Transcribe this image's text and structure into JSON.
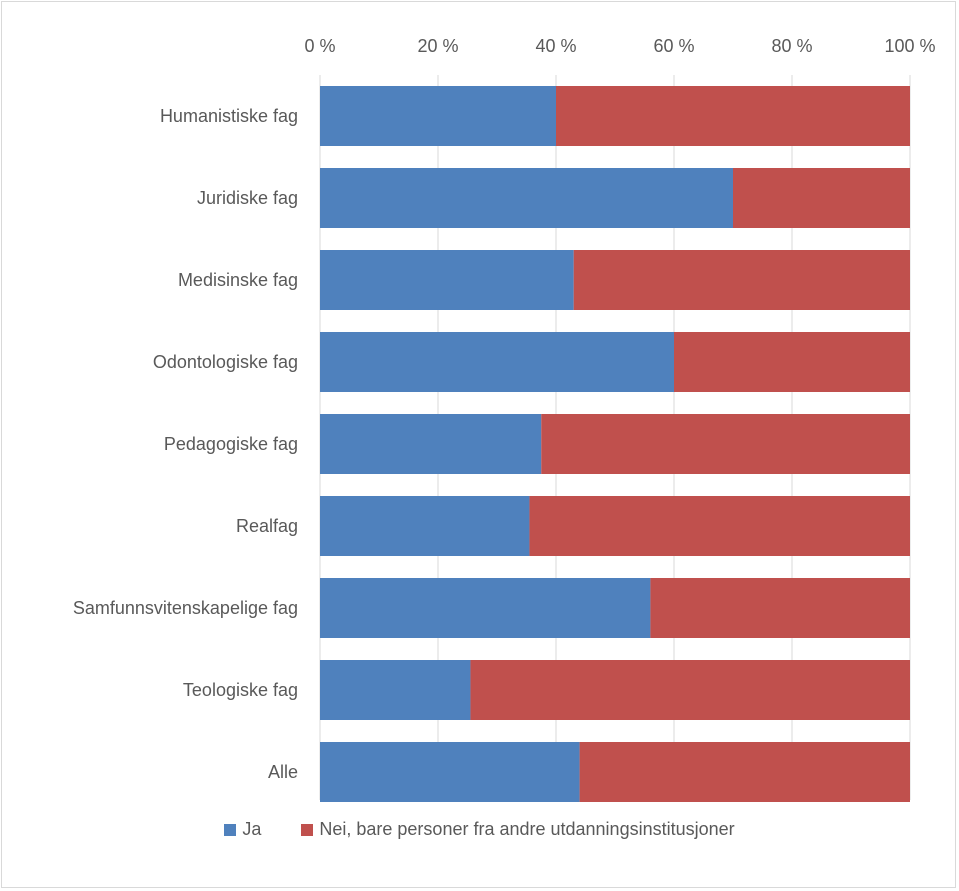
{
  "chart_data": {
    "type": "bar",
    "orientation": "horizontal",
    "stacked": "percent",
    "categories": [
      "Humanistiske fag",
      "Juridiske fag",
      "Medisinske fag",
      "Odontologiske fag",
      "Pedagogiske fag",
      "Realfag",
      "Samfunnsvitenskapelige fag",
      "Teologiske fag",
      "Alle"
    ],
    "series": [
      {
        "name": "Ja",
        "color": "#4f81bd",
        "values": [
          40,
          70,
          43,
          60,
          37.5,
          35.5,
          56,
          25.5,
          44
        ]
      },
      {
        "name": "Nei, bare personer fra andre utdanningsinstitusjoner",
        "color": "#c0504d",
        "values": [
          60,
          30,
          57,
          40,
          62.5,
          64.5,
          44,
          74.5,
          56
        ]
      }
    ],
    "xaxis": {
      "position": "top",
      "ticks": [
        "0 %",
        "20 %",
        "40 %",
        "60 %",
        "80 %",
        "100 %"
      ],
      "tick_values": [
        0,
        20,
        40,
        60,
        80,
        100
      ],
      "xlim": [
        0,
        100
      ]
    },
    "grid": true,
    "legend_position": "bottom"
  }
}
